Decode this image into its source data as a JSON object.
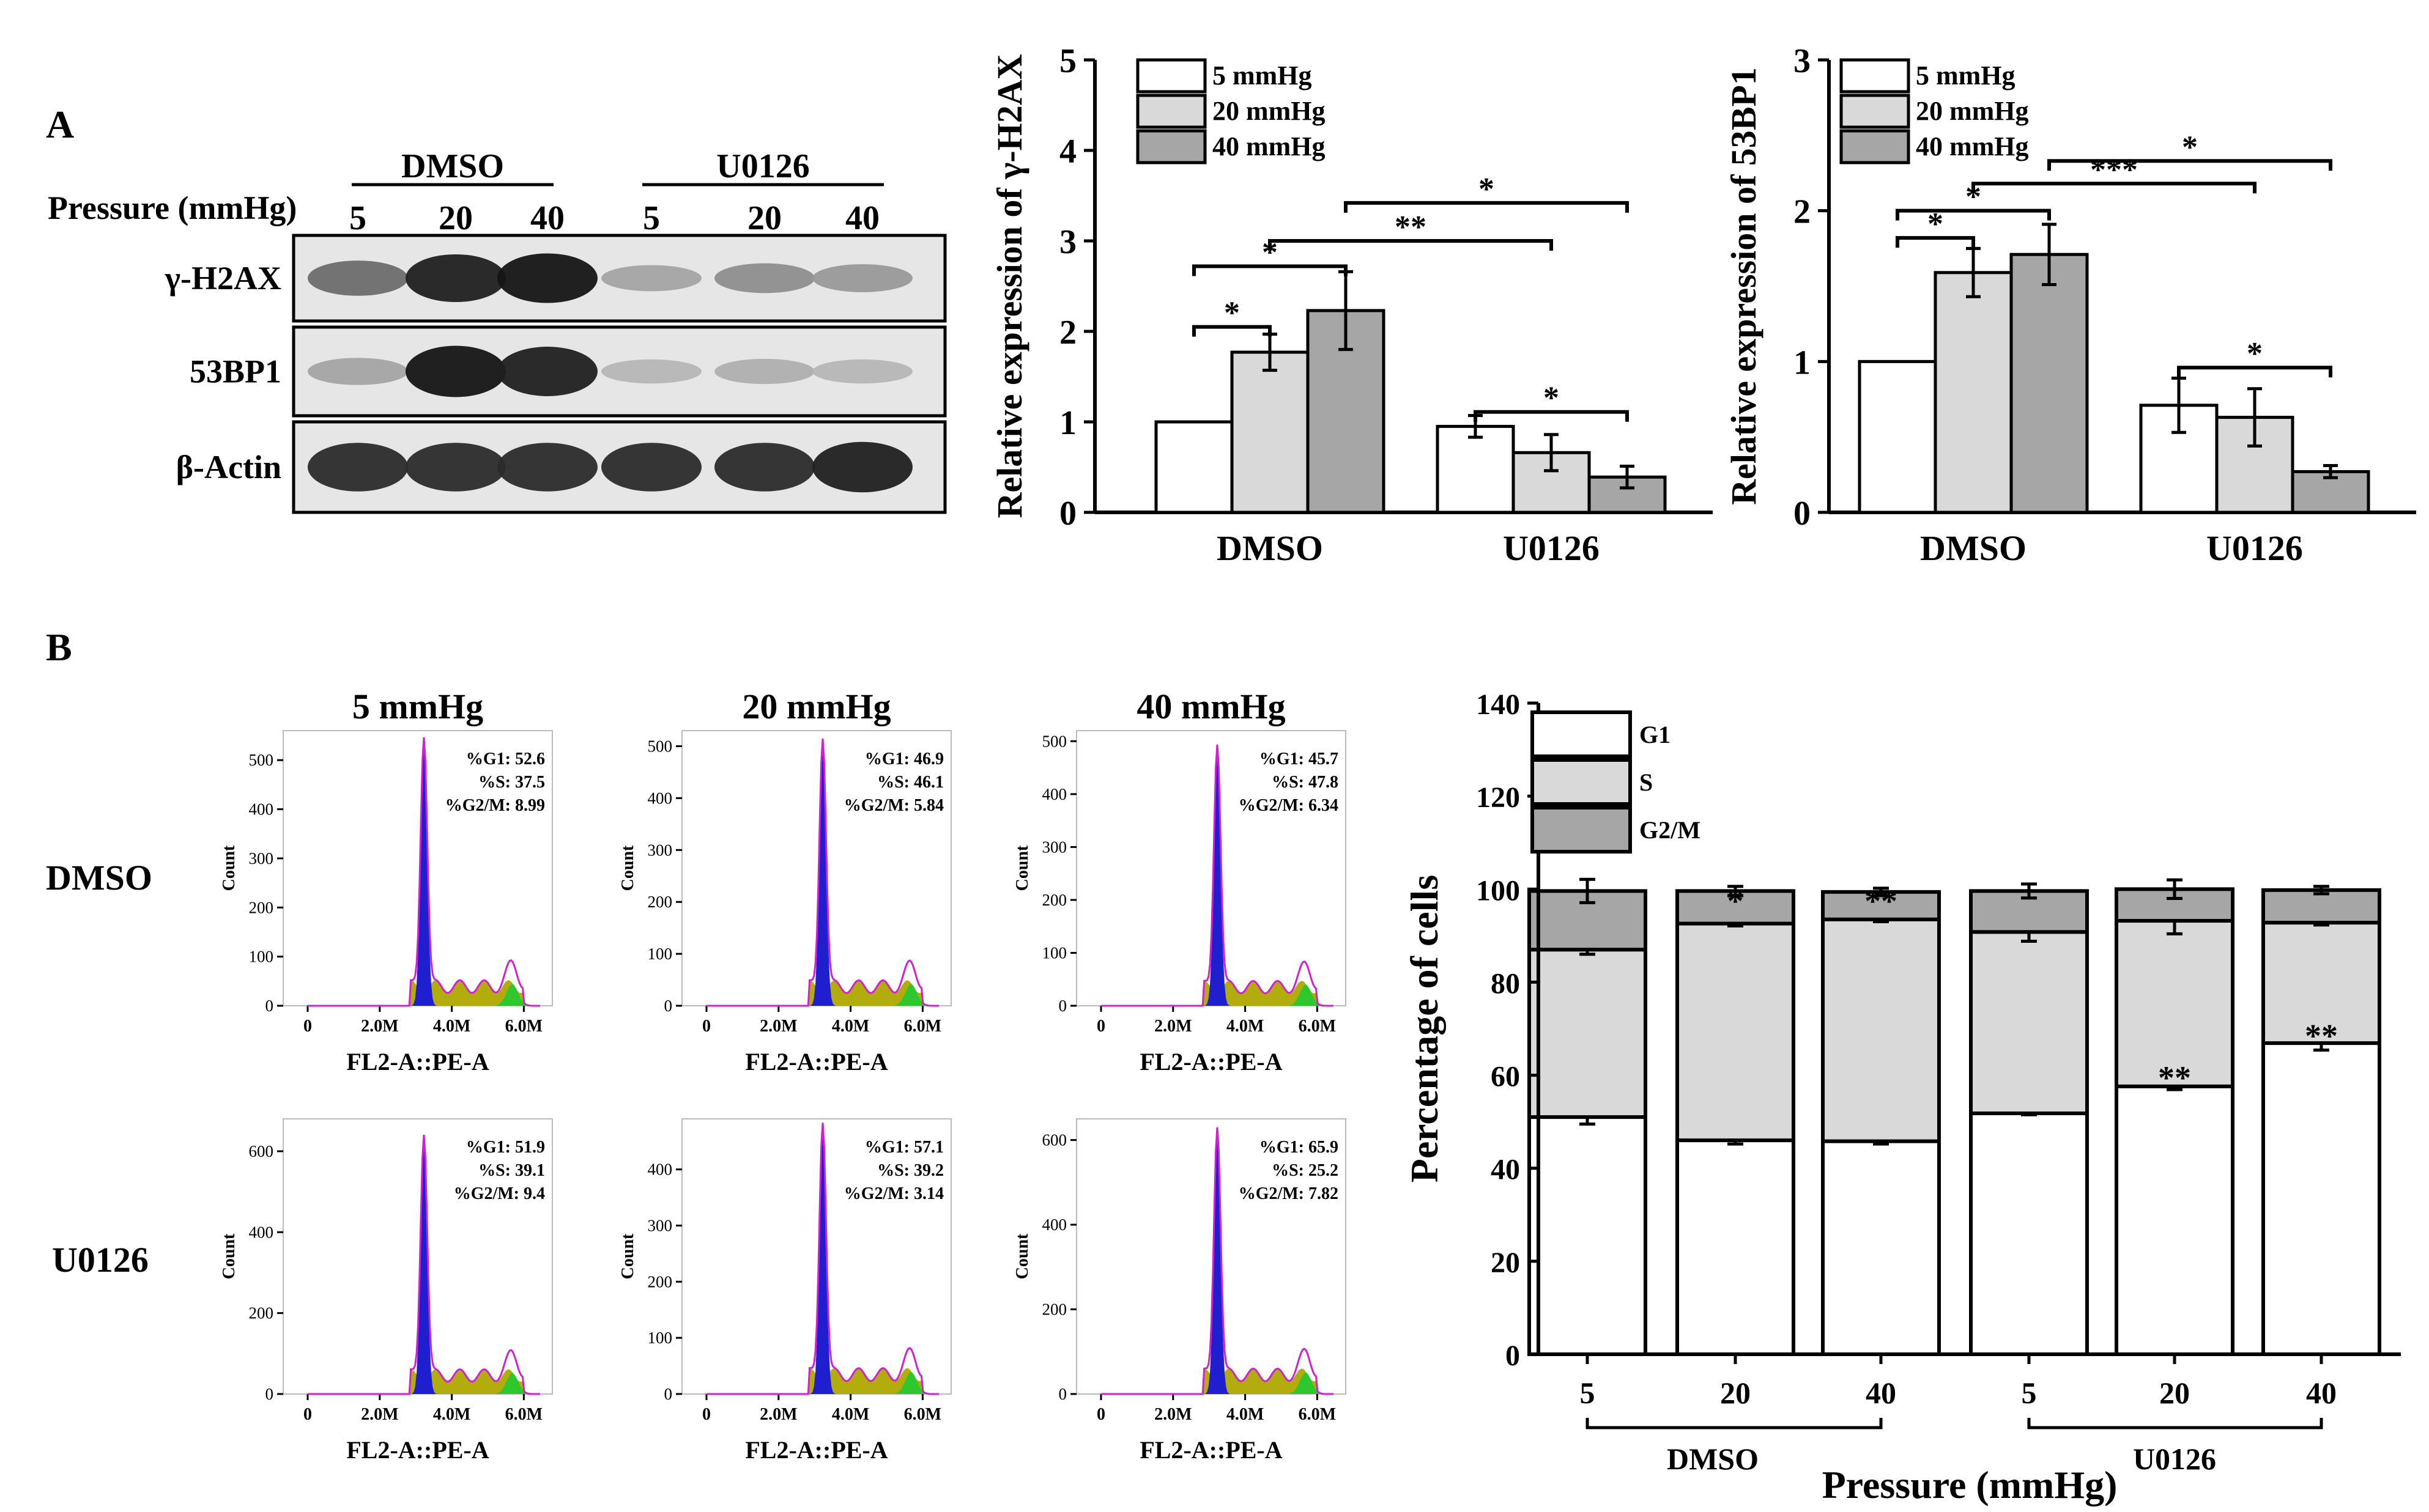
{
  "panel_labels": {
    "a": "A",
    "b": "B"
  },
  "colors": {
    "c5": "#ffffff",
    "c20": "#d9d9d9",
    "c40": "#a6a6a6",
    "g1": "#1f1fd0",
    "phase": "#b2ad0c",
    "g2": "#2ec82e",
    "fit": "#d21fd2"
  },
  "western_blot": {
    "groups": [
      "DMSO",
      "U0126"
    ],
    "pressure_label": "Pressure (mmHg)",
    "lane_pressures": [
      "5",
      "20",
      "40",
      "5",
      "20",
      "40"
    ],
    "rows": [
      {
        "label": "γ-H2AX",
        "intensity": [
          0.55,
          0.9,
          0.95,
          0.3,
          0.4,
          0.35
        ]
      },
      {
        "label": "53BP1",
        "intensity": [
          0.3,
          0.95,
          0.9,
          0.22,
          0.25,
          0.22
        ]
      },
      {
        "label": "β-Actin",
        "intensity": [
          0.85,
          0.85,
          0.85,
          0.85,
          0.85,
          0.9
        ]
      }
    ]
  },
  "chart_data": [
    {
      "type": "bar",
      "id": "h2ax",
      "title": "",
      "xlabel": "",
      "ylabel": "Relative expression of γ-H2AX",
      "ylim": [
        0,
        5
      ],
      "yticks": [
        "0",
        "1",
        "2",
        "3",
        "4",
        "5"
      ],
      "categories": [
        "DMSO",
        "U0126"
      ],
      "series": [
        {
          "name": "5 mmHg",
          "values": [
            1.0,
            0.95
          ],
          "errors": [
            0,
            0.12
          ]
        },
        {
          "name": "20 mmHg",
          "values": [
            1.77,
            0.66
          ],
          "errors": [
            0.2,
            0.2
          ]
        },
        {
          "name": "40 mmHg",
          "values": [
            2.23,
            0.39
          ],
          "errors": [
            0.43,
            0.12
          ]
        }
      ],
      "significance": [
        {
          "label": "*",
          "from": [
            0,
            0
          ],
          "to": [
            0,
            1
          ],
          "level": 2.05
        },
        {
          "label": "*",
          "from": [
            0,
            0
          ],
          "to": [
            0,
            2
          ],
          "level": 2.72
        },
        {
          "label": "**",
          "from": [
            0,
            1
          ],
          "to": [
            1,
            1
          ],
          "level": 3.0
        },
        {
          "label": "*",
          "from": [
            0,
            2
          ],
          "to": [
            1,
            2
          ],
          "level": 3.42
        },
        {
          "label": "*",
          "from": [
            1,
            0
          ],
          "to": [
            1,
            2
          ],
          "level": 1.11
        }
      ]
    },
    {
      "type": "bar",
      "id": "53bp1",
      "title": "",
      "xlabel": "",
      "ylabel": "Relative expression of 53BP1",
      "ylim": [
        0,
        3
      ],
      "yticks": [
        "0",
        "1",
        "2",
        "3"
      ],
      "categories": [
        "DMSO",
        "U0126"
      ],
      "series": [
        {
          "name": "5 mmHg",
          "values": [
            1.0,
            0.71
          ],
          "errors": [
            0,
            0.18
          ]
        },
        {
          "name": "20 mmHg",
          "values": [
            1.59,
            0.63
          ],
          "errors": [
            0.16,
            0.19
          ]
        },
        {
          "name": "40 mmHg",
          "values": [
            1.71,
            0.27
          ],
          "errors": [
            0.2,
            0.04
          ]
        }
      ],
      "significance": [
        {
          "label": "*",
          "from": [
            0,
            0
          ],
          "to": [
            0,
            1
          ],
          "level": 1.82
        },
        {
          "label": "*",
          "from": [
            0,
            0
          ],
          "to": [
            0,
            2
          ],
          "level": 2.0
        },
        {
          "label": "***",
          "from": [
            0,
            1
          ],
          "to": [
            1,
            1
          ],
          "level": 2.18
        },
        {
          "label": "*",
          "from": [
            0,
            2
          ],
          "to": [
            1,
            2
          ],
          "level": 2.33
        },
        {
          "label": "*",
          "from": [
            1,
            0
          ],
          "to": [
            1,
            2
          ],
          "level": 0.96
        }
      ]
    },
    {
      "type": "bar",
      "id": "cellcycle",
      "stacked": true,
      "title": "",
      "xlabel": "Pressure (mmHg)",
      "ylabel": "Percentage of cells",
      "ylim": [
        0,
        140
      ],
      "yticks": [
        "0",
        "20",
        "40",
        "60",
        "80",
        "100",
        "120",
        "140"
      ],
      "categories": [
        "5",
        "20",
        "40",
        "5",
        "20",
        "40"
      ],
      "group_labels": [
        "DMSO",
        "U0126"
      ],
      "series": [
        {
          "name": "G1",
          "values": [
            51.0,
            46.0,
            45.8,
            51.8,
            57.6,
            66.9
          ],
          "errors": [
            1.5,
            0.8,
            0.6,
            0.3,
            0.7,
            1.5
          ]
        },
        {
          "name": "S",
          "values": [
            36.0,
            46.6,
            47.7,
            39.0,
            35.6,
            25.9
          ],
          "errors": [
            1.0,
            0.5,
            0.5,
            2.0,
            2.8,
            0.5
          ]
        },
        {
          "name": "G2/M",
          "values": [
            12.6,
            7.0,
            5.9,
            8.8,
            6.8,
            7.0
          ],
          "errors": [
            2.5,
            1.0,
            0.8,
            1.5,
            2.0,
            0.8
          ]
        }
      ],
      "annotations": [
        {
          "bar": 1,
          "label": "*",
          "value": 97
        },
        {
          "bar": 2,
          "label": "**",
          "value": 97
        },
        {
          "bar": 4,
          "label": "**",
          "value": 59
        },
        {
          "bar": 5,
          "label": "**",
          "value": 68
        }
      ]
    }
  ],
  "histograms": {
    "columns": [
      "5 mmHg",
      "20 mmHg",
      "40 mmHg"
    ],
    "rows": [
      "DMSO",
      "U0126"
    ],
    "xlabel": "FL2-A::PE-A",
    "ylabel": "Count",
    "xticks": [
      "0",
      "2.0M",
      "4.0M",
      "6.0M"
    ],
    "panels": [
      {
        "yticks": [
          "0",
          "100",
          "200",
          "300",
          "400",
          "500"
        ],
        "ymax": 560,
        "peak": 520,
        "stats": [
          "%G1:  52.6",
          "%S:  37.5",
          "%G2/M:  8.99"
        ]
      },
      {
        "yticks": [
          "0",
          "100",
          "200",
          "300",
          "400",
          "500"
        ],
        "ymax": 530,
        "peak": 490,
        "stats": [
          "%G1:  46.9",
          "%S:  46.1",
          "%G2/M:  5.84"
        ]
      },
      {
        "yticks": [
          "0",
          "100",
          "200",
          "300",
          "400",
          "500"
        ],
        "ymax": 520,
        "peak": 470,
        "stats": [
          "%G1:  45.7",
          "%S:  47.8",
          "%G2/M:  6.34"
        ]
      },
      {
        "yticks": [
          "0",
          "200",
          "400",
          "600"
        ],
        "ymax": 680,
        "peak": 610,
        "stats": [
          "%G1:  51.9",
          "%S:  39.1",
          "%G2/M:  9.4"
        ]
      },
      {
        "yticks": [
          "0",
          "100",
          "200",
          "300",
          "400"
        ],
        "ymax": 490,
        "peak": 460,
        "stats": [
          "%G1:  57.1",
          "%S:  39.2",
          "%G2/M:  3.14"
        ]
      },
      {
        "yticks": [
          "0",
          "200",
          "400",
          "600"
        ],
        "ymax": 650,
        "peak": 600,
        "stats": [
          "%G1:  65.9",
          "%S:  25.2",
          "%G2/M:  7.82"
        ]
      }
    ]
  }
}
